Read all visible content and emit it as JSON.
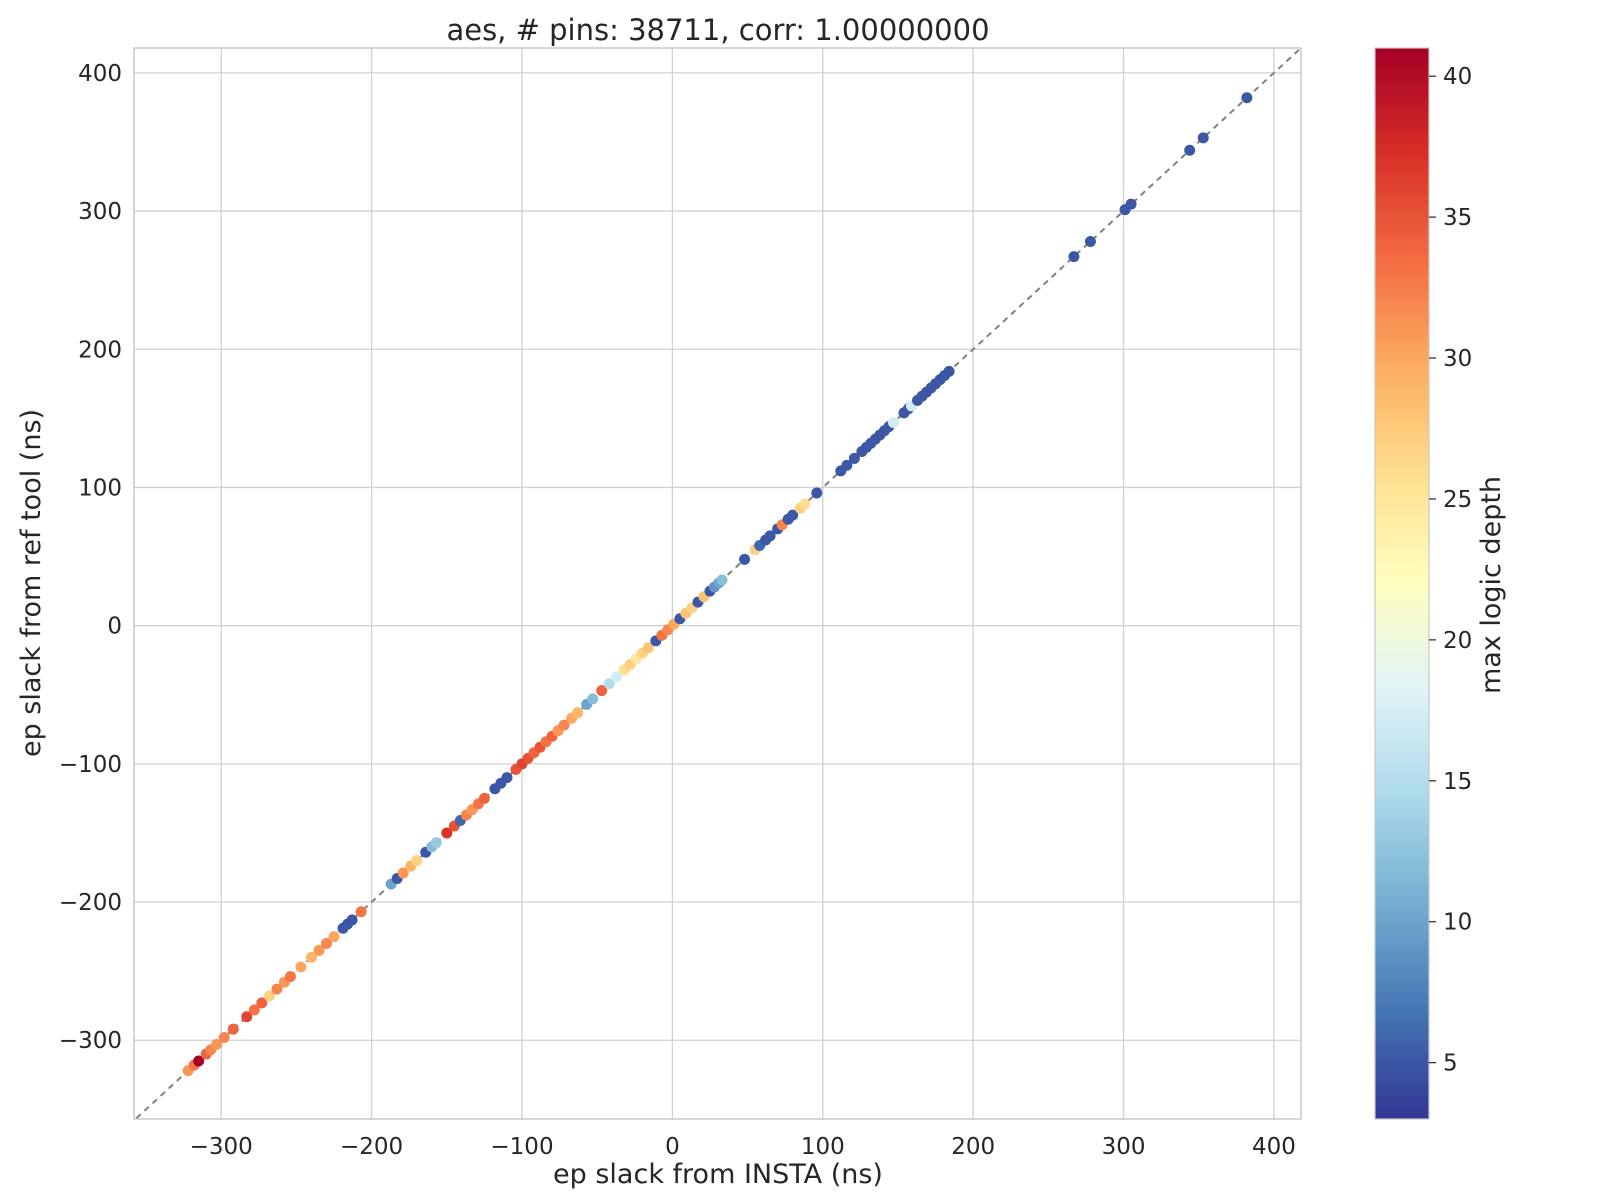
{
  "chart_data": {
    "type": "scatter",
    "title": "aes, # pins: 38711, corr: 1.00000000",
    "xlabel": "ep slack from INSTA (ns)",
    "ylabel": "ep slack from ref tool (ns)",
    "xlim": [
      -358,
      418
    ],
    "ylim": [
      -357,
      418
    ],
    "xticks": [
      -300,
      -200,
      -100,
      0,
      100,
      200,
      300,
      400
    ],
    "xtick_labels": [
      "−300",
      "−200",
      "−100",
      "0",
      "100",
      "200",
      "300",
      "400"
    ],
    "yticks": [
      -300,
      -200,
      -100,
      0,
      100,
      200,
      300,
      400
    ],
    "ytick_labels": [
      "−300",
      "−200",
      "−100",
      "0",
      "100",
      "200",
      "300",
      "400"
    ],
    "grid": true,
    "reference_line": "y = x (dashed gray)",
    "colorbar": {
      "label": "max logic depth",
      "colormap": "RdYlBu_r",
      "range": [
        3,
        41
      ],
      "ticks": [
        5,
        10,
        15,
        20,
        25,
        30,
        35,
        40
      ],
      "tick_labels": [
        "5",
        "10",
        "15",
        "20",
        "25",
        "30",
        "35",
        "40"
      ],
      "colors": [
        "#313695",
        "#4575b4",
        "#74add1",
        "#abd9e9",
        "#e0f3f8",
        "#ffffbf",
        "#fee090",
        "#fdae61",
        "#f46d43",
        "#d73027",
        "#a50026"
      ]
    },
    "points": [
      {
        "x": -322,
        "y": -322,
        "depth": 31
      },
      {
        "x": -318,
        "y": -318,
        "depth": 33
      },
      {
        "x": -315,
        "y": -315,
        "depth": 41
      },
      {
        "x": -310,
        "y": -310,
        "depth": 34
      },
      {
        "x": -307,
        "y": -307,
        "depth": 32
      },
      {
        "x": -303,
        "y": -303,
        "depth": 31
      },
      {
        "x": -298,
        "y": -298,
        "depth": 32
      },
      {
        "x": -292,
        "y": -292,
        "depth": 34
      },
      {
        "x": -283,
        "y": -283,
        "depth": 36
      },
      {
        "x": -278,
        "y": -278,
        "depth": 33
      },
      {
        "x": -273,
        "y": -273,
        "depth": 34
      },
      {
        "x": -268,
        "y": -268,
        "depth": 27
      },
      {
        "x": -263,
        "y": -263,
        "depth": 32
      },
      {
        "x": -258,
        "y": -258,
        "depth": 31
      },
      {
        "x": -254,
        "y": -254,
        "depth": 33
      },
      {
        "x": -247,
        "y": -247,
        "depth": 30
      },
      {
        "x": -240,
        "y": -240,
        "depth": 29
      },
      {
        "x": -235,
        "y": -235,
        "depth": 31
      },
      {
        "x": -230,
        "y": -230,
        "depth": 32
      },
      {
        "x": -225,
        "y": -225,
        "depth": 30
      },
      {
        "x": -219,
        "y": -219,
        "depth": 5
      },
      {
        "x": -216,
        "y": -216,
        "depth": 5
      },
      {
        "x": -213,
        "y": -213,
        "depth": 5
      },
      {
        "x": -207,
        "y": -207,
        "depth": 33
      },
      {
        "x": -187,
        "y": -187,
        "depth": 10
      },
      {
        "x": -183,
        "y": -183,
        "depth": 5
      },
      {
        "x": -179,
        "y": -179,
        "depth": 31
      },
      {
        "x": -174,
        "y": -174,
        "depth": 29
      },
      {
        "x": -170,
        "y": -170,
        "depth": 27
      },
      {
        "x": -164,
        "y": -164,
        "depth": 5
      },
      {
        "x": -160,
        "y": -160,
        "depth": 12
      },
      {
        "x": -157,
        "y": -157,
        "depth": 13
      },
      {
        "x": -150,
        "y": -150,
        "depth": 37
      },
      {
        "x": -145,
        "y": -145,
        "depth": 35
      },
      {
        "x": -141,
        "y": -141,
        "depth": 6
      },
      {
        "x": -137,
        "y": -137,
        "depth": 32
      },
      {
        "x": -133,
        "y": -133,
        "depth": 31
      },
      {
        "x": -129,
        "y": -129,
        "depth": 33
      },
      {
        "x": -125,
        "y": -125,
        "depth": 34
      },
      {
        "x": -118,
        "y": -118,
        "depth": 5
      },
      {
        "x": -114,
        "y": -114,
        "depth": 5
      },
      {
        "x": -110,
        "y": -110,
        "depth": 5
      },
      {
        "x": -104,
        "y": -104,
        "depth": 35
      },
      {
        "x": -100,
        "y": -100,
        "depth": 36
      },
      {
        "x": -96,
        "y": -96,
        "depth": 35
      },
      {
        "x": -92,
        "y": -92,
        "depth": 34
      },
      {
        "x": -88,
        "y": -88,
        "depth": 35
      },
      {
        "x": -84,
        "y": -84,
        "depth": 33
      },
      {
        "x": -80,
        "y": -80,
        "depth": 34
      },
      {
        "x": -76,
        "y": -76,
        "depth": 31
      },
      {
        "x": -72,
        "y": -72,
        "depth": 32
      },
      {
        "x": -67,
        "y": -67,
        "depth": 30
      },
      {
        "x": -63,
        "y": -63,
        "depth": 29
      },
      {
        "x": -57,
        "y": -57,
        "depth": 10
      },
      {
        "x": -53,
        "y": -53,
        "depth": 12
      },
      {
        "x": -47,
        "y": -47,
        "depth": 34
      },
      {
        "x": -42,
        "y": -42,
        "depth": 15
      },
      {
        "x": -37,
        "y": -37,
        "depth": 17
      },
      {
        "x": -32,
        "y": -32,
        "depth": 26
      },
      {
        "x": -28,
        "y": -28,
        "depth": 27
      },
      {
        "x": -24,
        "y": -24,
        "depth": 25
      },
      {
        "x": -20,
        "y": -20,
        "depth": 27
      },
      {
        "x": -16,
        "y": -16,
        "depth": 28
      },
      {
        "x": -11,
        "y": -11,
        "depth": 5
      },
      {
        "x": -7,
        "y": -7,
        "depth": 33
      },
      {
        "x": -3,
        "y": -3,
        "depth": 32
      },
      {
        "x": 1,
        "y": 1,
        "depth": 30
      },
      {
        "x": 5,
        "y": 5,
        "depth": 5
      },
      {
        "x": 9,
        "y": 9,
        "depth": 28
      },
      {
        "x": 13,
        "y": 13,
        "depth": 27
      },
      {
        "x": 17,
        "y": 17,
        "depth": 5
      },
      {
        "x": 21,
        "y": 21,
        "depth": 28
      },
      {
        "x": 25,
        "y": 25,
        "depth": 5
      },
      {
        "x": 28,
        "y": 28,
        "depth": 9
      },
      {
        "x": 31,
        "y": 31,
        "depth": 10
      },
      {
        "x": 33,
        "y": 33,
        "depth": 12
      },
      {
        "x": 48,
        "y": 48,
        "depth": 5
      },
      {
        "x": 55,
        "y": 55,
        "depth": 27
      },
      {
        "x": 58,
        "y": 58,
        "depth": 6
      },
      {
        "x": 62,
        "y": 62,
        "depth": 5
      },
      {
        "x": 65,
        "y": 65,
        "depth": 5
      },
      {
        "x": 70,
        "y": 70,
        "depth": 5
      },
      {
        "x": 73,
        "y": 73,
        "depth": 32
      },
      {
        "x": 77,
        "y": 77,
        "depth": 5
      },
      {
        "x": 80,
        "y": 80,
        "depth": 5
      },
      {
        "x": 85,
        "y": 85,
        "depth": 27
      },
      {
        "x": 88,
        "y": 88,
        "depth": 26
      },
      {
        "x": 96,
        "y": 96,
        "depth": 5
      },
      {
        "x": 112,
        "y": 112,
        "depth": 5
      },
      {
        "x": 116,
        "y": 116,
        "depth": 5
      },
      {
        "x": 121,
        "y": 121,
        "depth": 5
      },
      {
        "x": 126,
        "y": 126,
        "depth": 5
      },
      {
        "x": 129,
        "y": 129,
        "depth": 5
      },
      {
        "x": 132,
        "y": 132,
        "depth": 5
      },
      {
        "x": 135,
        "y": 135,
        "depth": 5
      },
      {
        "x": 138,
        "y": 138,
        "depth": 5
      },
      {
        "x": 141,
        "y": 141,
        "depth": 5
      },
      {
        "x": 144,
        "y": 144,
        "depth": 5
      },
      {
        "x": 147,
        "y": 147,
        "depth": 17
      },
      {
        "x": 154,
        "y": 154,
        "depth": 5
      },
      {
        "x": 157,
        "y": 157,
        "depth": 5
      },
      {
        "x": 159,
        "y": 159,
        "depth": 17
      },
      {
        "x": 163,
        "y": 163,
        "depth": 5
      },
      {
        "x": 166,
        "y": 166,
        "depth": 5
      },
      {
        "x": 169,
        "y": 169,
        "depth": 5
      },
      {
        "x": 172,
        "y": 172,
        "depth": 5
      },
      {
        "x": 175,
        "y": 175,
        "depth": 5
      },
      {
        "x": 178,
        "y": 178,
        "depth": 5
      },
      {
        "x": 181,
        "y": 181,
        "depth": 5
      },
      {
        "x": 184,
        "y": 184,
        "depth": 5
      },
      {
        "x": 267,
        "y": 267,
        "depth": 5
      },
      {
        "x": 278,
        "y": 278,
        "depth": 5
      },
      {
        "x": 301,
        "y": 301,
        "depth": 5
      },
      {
        "x": 305,
        "y": 305,
        "depth": 5
      },
      {
        "x": 344,
        "y": 344,
        "depth": 5
      },
      {
        "x": 353,
        "y": 353,
        "depth": 5
      },
      {
        "x": 382,
        "y": 382,
        "depth": 5
      }
    ]
  }
}
